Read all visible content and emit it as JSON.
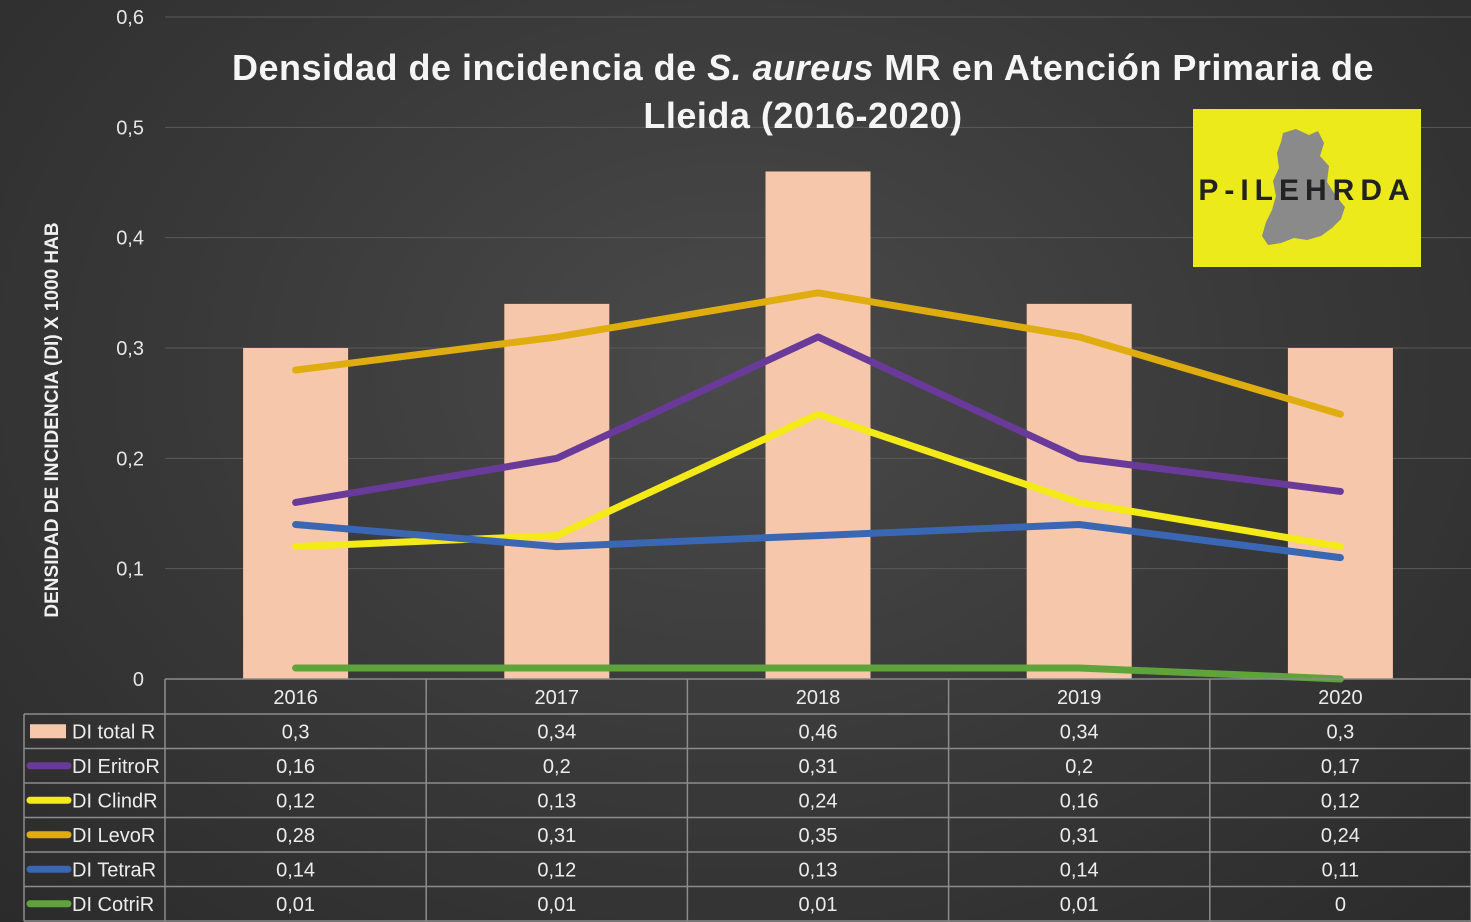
{
  "chart_data": {
    "type": "bar",
    "title_parts": [
      "Densidad de incidencia de ",
      "S. aureus",
      " MR en Atención Primaria de"
    ],
    "title_line2": "Lleida (2016-2020)",
    "ylabel": "DENSIDAD DE INCIDENCIA (DI)  X 1000 HAB",
    "ylim": [
      0,
      0.6
    ],
    "yticks": [
      "0",
      "0,1",
      "0,2",
      "0,3",
      "0,4",
      "0,5",
      "0,6"
    ],
    "categories": [
      "2016",
      "2017",
      "2018",
      "2019",
      "2020"
    ],
    "grid": true,
    "legend": "data-table",
    "series": [
      {
        "name": "DI total R",
        "kind": "bar",
        "color": "#f6c7ab",
        "values": [
          0.3,
          0.34,
          0.46,
          0.34,
          0.3
        ],
        "labels": [
          "0,3",
          "0,34",
          "0,46",
          "0,34",
          "0,3"
        ]
      },
      {
        "name": "DI EritroR",
        "kind": "line",
        "color": "#6a3a9a",
        "values": [
          0.16,
          0.2,
          0.31,
          0.2,
          0.17
        ],
        "labels": [
          "0,16",
          "0,2",
          "0,31",
          "0,2",
          "0,17"
        ]
      },
      {
        "name": "DI ClindR",
        "kind": "line",
        "color": "#f3ea18",
        "values": [
          0.12,
          0.13,
          0.24,
          0.16,
          0.12
        ],
        "labels": [
          "0,12",
          "0,13",
          "0,24",
          "0,16",
          "0,12"
        ]
      },
      {
        "name": "DI LevoR",
        "kind": "line",
        "color": "#dfad10",
        "values": [
          0.28,
          0.31,
          0.35,
          0.31,
          0.24
        ],
        "labels": [
          "0,28",
          "0,31",
          "0,35",
          "0,31",
          "0,24"
        ]
      },
      {
        "name": "DI TetraR",
        "kind": "line",
        "color": "#3a67b3",
        "values": [
          0.14,
          0.12,
          0.13,
          0.14,
          0.11
        ],
        "labels": [
          "0,14",
          "0,12",
          "0,13",
          "0,14",
          "0,11"
        ]
      },
      {
        "name": "DI CotriR",
        "kind": "line",
        "color": "#5fa43a",
        "values": [
          0.01,
          0.01,
          0.01,
          0.01,
          0
        ],
        "labels": [
          "0,01",
          "0,01",
          "0,01",
          "0,01",
          "0"
        ]
      }
    ]
  },
  "logo": {
    "text": "P-ILEHRDA",
    "background": "#ecea1b",
    "map_color": "#8a8a8a"
  }
}
